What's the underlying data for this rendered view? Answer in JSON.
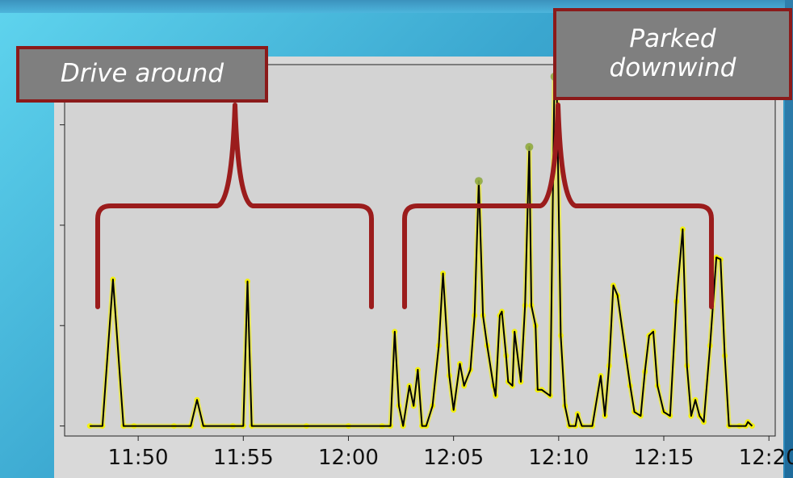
{
  "annotations": {
    "left_label": "Drive around",
    "right_label": "Parked\ndownwind"
  },
  "colors": {
    "bracket": "#9b1c1c",
    "line": "#000000",
    "highlight": "#f5f200",
    "peak_marker": "#8fa84a"
  },
  "chart_data": {
    "type": "line",
    "title": "",
    "xlabel": "",
    "ylabel": "",
    "x_tick_labels": [
      "11:50",
      "11:55",
      "12:00",
      "12:05",
      "12:10",
      "12:15",
      "12:20"
    ],
    "x_tick_minutes": [
      50,
      55,
      60,
      65,
      70,
      75,
      80
    ],
    "xlim_minutes": [
      46.5,
      80.3
    ],
    "ylim": [
      -0.05,
      1.8
    ],
    "y_ticks": [
      0,
      0.5,
      1.0,
      1.5
    ],
    "y_tick_labels_visible": false,
    "grid": false,
    "series": [
      {
        "points": [
          [
            47.7,
            0
          ],
          [
            48.3,
            0
          ],
          [
            48.8,
            0.73
          ],
          [
            49.3,
            0
          ],
          [
            49.8,
            0
          ],
          [
            51.7,
            0
          ],
          [
            52.5,
            0
          ],
          [
            52.8,
            0.13
          ],
          [
            53.1,
            0
          ],
          [
            54.5,
            0
          ],
          [
            55.0,
            0
          ],
          [
            55.2,
            0.72
          ],
          [
            55.4,
            0
          ],
          [
            58,
            0
          ],
          [
            60,
            0
          ],
          [
            61.6,
            0
          ],
          [
            62.0,
            0
          ],
          [
            62.2,
            0.47
          ],
          [
            62.4,
            0.1
          ],
          [
            62.6,
            0
          ],
          [
            62.9,
            0.2
          ],
          [
            63.1,
            0.1
          ],
          [
            63.3,
            0.28
          ],
          [
            63.5,
            0
          ],
          [
            63.7,
            0
          ],
          [
            64.0,
            0.1
          ],
          [
            64.3,
            0.4
          ],
          [
            64.5,
            0.76
          ],
          [
            64.8,
            0.25
          ],
          [
            65.0,
            0.08
          ],
          [
            65.3,
            0.31
          ],
          [
            65.5,
            0.2
          ],
          [
            65.8,
            0.28
          ],
          [
            66.0,
            0.55
          ],
          [
            66.2,
            1.22
          ],
          [
            66.4,
            0.55
          ],
          [
            66.6,
            0.4
          ],
          [
            66.9,
            0.2
          ],
          [
            67.0,
            0.15
          ],
          [
            67.2,
            0.55
          ],
          [
            67.3,
            0.57
          ],
          [
            67.5,
            0.35
          ],
          [
            67.6,
            0.22
          ],
          [
            67.8,
            0.2
          ],
          [
            67.9,
            0.47
          ],
          [
            68.2,
            0.22
          ],
          [
            68.4,
            0.6
          ],
          [
            68.6,
            1.39
          ],
          [
            68.7,
            0.6
          ],
          [
            68.9,
            0.5
          ],
          [
            69.0,
            0.18
          ],
          [
            69.2,
            0.18
          ],
          [
            69.6,
            0.15
          ],
          [
            69.8,
            1.74
          ],
          [
            69.9,
            1.76
          ],
          [
            70.1,
            0.45
          ],
          [
            70.3,
            0.1
          ],
          [
            70.5,
            0
          ],
          [
            70.8,
            0
          ],
          [
            70.9,
            0.06
          ],
          [
            71.1,
            0
          ],
          [
            71.6,
            0
          ],
          [
            72.0,
            0.25
          ],
          [
            72.2,
            0.05
          ],
          [
            72.4,
            0.3
          ],
          [
            72.6,
            0.7
          ],
          [
            72.8,
            0.65
          ],
          [
            73.2,
            0.35
          ],
          [
            73.4,
            0.2
          ],
          [
            73.6,
            0.07
          ],
          [
            73.9,
            0.05
          ],
          [
            74.1,
            0.27
          ],
          [
            74.3,
            0.45
          ],
          [
            74.5,
            0.47
          ],
          [
            74.7,
            0.2
          ],
          [
            75.0,
            0.07
          ],
          [
            75.3,
            0.05
          ],
          [
            75.6,
            0.62
          ],
          [
            75.9,
            0.98
          ],
          [
            76.1,
            0.3
          ],
          [
            76.3,
            0.05
          ],
          [
            76.5,
            0.13
          ],
          [
            76.7,
            0.05
          ],
          [
            76.9,
            0.02
          ],
          [
            77.2,
            0.4
          ],
          [
            77.5,
            0.84
          ],
          [
            77.7,
            0.83
          ],
          [
            77.9,
            0.35
          ],
          [
            78.1,
            0
          ],
          [
            78.6,
            0
          ],
          [
            78.9,
            0
          ],
          [
            79.0,
            0.02
          ],
          [
            79.2,
            0
          ]
        ],
        "peak_markers_x": [
          66.2,
          68.6,
          69.8
        ]
      }
    ]
  }
}
